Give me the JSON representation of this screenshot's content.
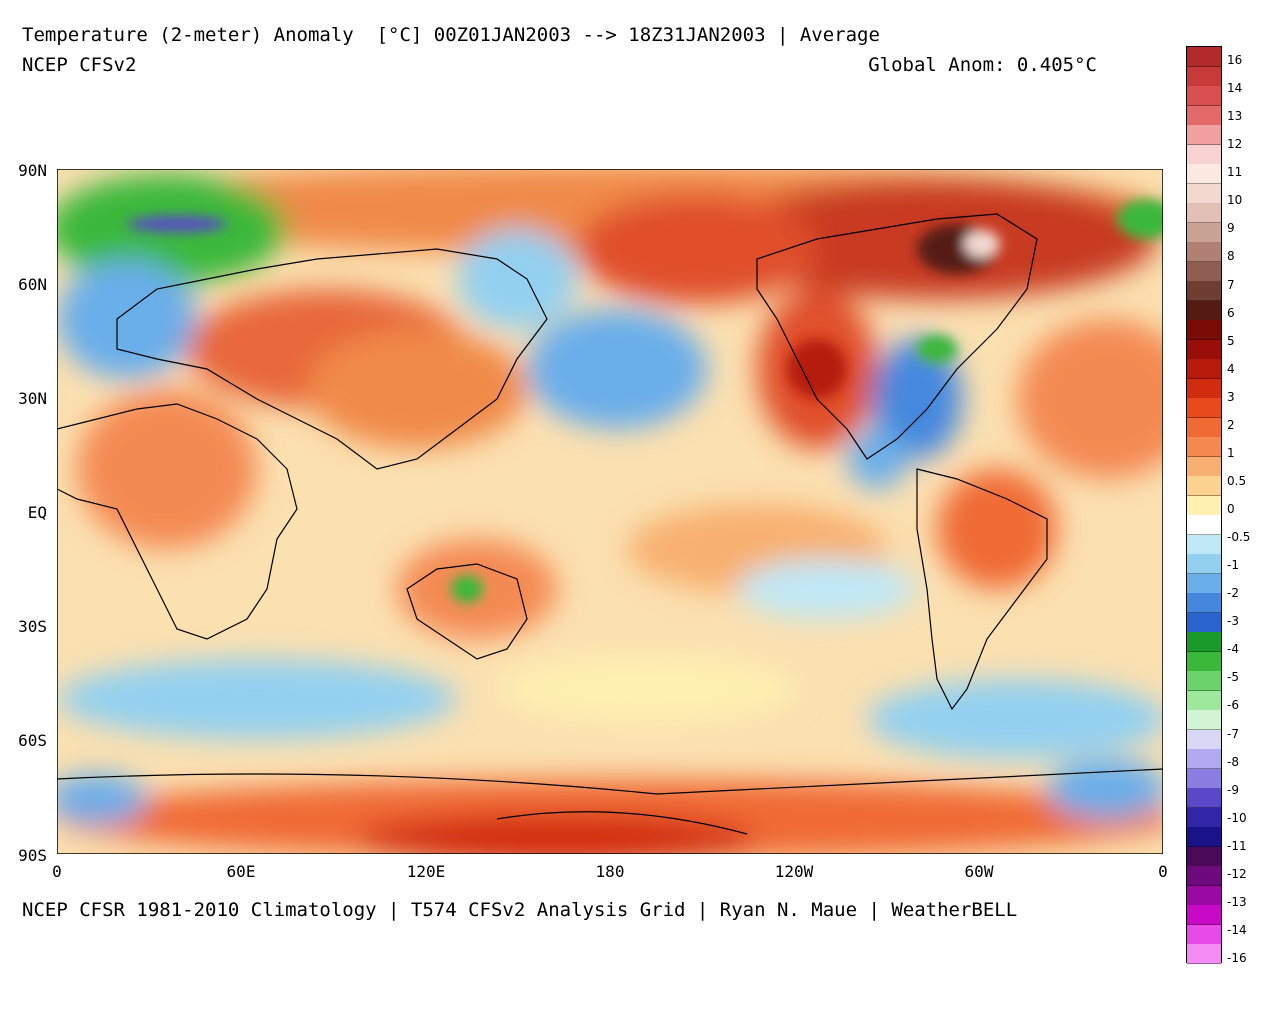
{
  "header": {
    "title": "Temperature (2-meter) Anomaly  [°C] 00Z01JAN2003 --> 18Z31JAN2003 | Average",
    "model": "NCEP CFSv2",
    "global_anom": "Global Anom: 0.405°C"
  },
  "footer": "NCEP CFSR 1981-2010 Climatology | T574 CFSv2 Analysis Grid | Ryan N. Maue | WeatherBELL",
  "map": {
    "lat_labels": [
      "90N",
      "60N",
      "30N",
      "EQ",
      "30S",
      "60S",
      "90S"
    ],
    "lon_labels": [
      "0",
      "60E",
      "120E",
      "180",
      "120W",
      "60W",
      "0"
    ]
  },
  "colorbar": {
    "labels": [
      "16",
      "14",
      "13",
      "12",
      "11",
      "10",
      "9",
      "8",
      "7",
      "6",
      "5",
      "4",
      "3",
      "2",
      "1",
      "0.5",
      "0",
      "-0.5",
      "-1",
      "-2",
      "-3",
      "-4",
      "-5",
      "-6",
      "-7",
      "-8",
      "-9",
      "-10",
      "-11",
      "-12",
      "-13",
      "-14",
      "-16"
    ],
    "colors": [
      "#b22a2a",
      "#c83a3a",
      "#d85050",
      "#e46a6a",
      "#f0a0a0",
      "#f8d2d2",
      "#fbe9e1",
      "#f2d9d0",
      "#e2c0b6",
      "#c9a296",
      "#b08074",
      "#8f5e52",
      "#6e3e34",
      "#551a12",
      "#7a0c06",
      "#990e08",
      "#b61a0a",
      "#d22c10",
      "#e84a1c",
      "#f06a34",
      "#f48a52",
      "#f8b070",
      "#fbd28e",
      "#fdf0b0",
      "#ffffff",
      "#bfe8f6",
      "#93d0f0",
      "#6aaeea",
      "#4488de",
      "#2a64ce",
      "#1a9a2a",
      "#3ab83a",
      "#6ad46a",
      "#9ee89e",
      "#d2f4d2",
      "#d8d8f6",
      "#b2aaf0",
      "#8a7ee2",
      "#5a48c8",
      "#3226a8",
      "#1a1288",
      "#4a0a58",
      "#6e0a7e",
      "#9a0aa2",
      "#c80ac8",
      "#e84ae8",
      "#f48cf4"
    ]
  }
}
